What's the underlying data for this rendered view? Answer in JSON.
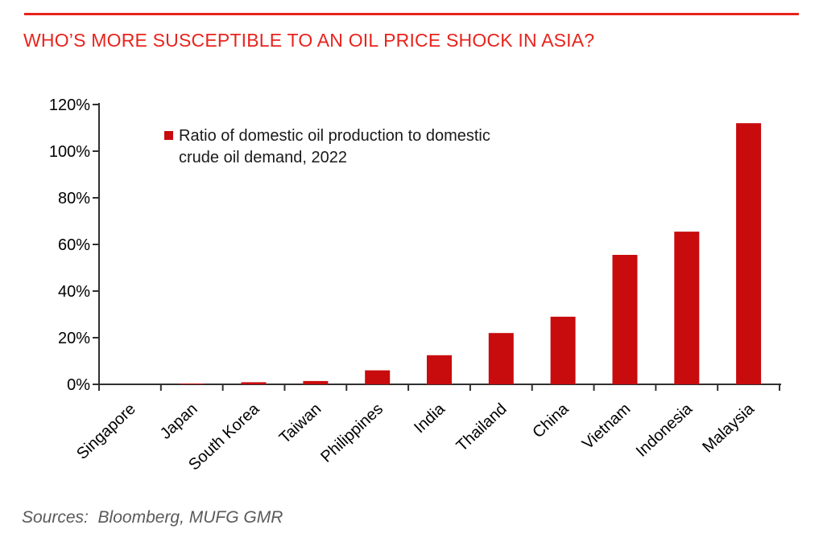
{
  "header": {
    "title": "WHO’S MORE SUSCEPTIBLE TO AN OIL PRICE SHOCK IN ASIA?"
  },
  "legend": {
    "line1": "Ratio of domestic oil production to domestic",
    "line2": "crude oil demand, 2022"
  },
  "footer": {
    "sources": "Sources:  Bloomberg, MUFG GMR"
  },
  "colors": {
    "accent_red": "#E8231D",
    "bar_red": "#C80B0D",
    "axis": "#303030",
    "tick_label": "#000000",
    "source_gray": "#5A5A5A"
  },
  "chart_data": {
    "type": "bar",
    "title": "WHO’S MORE SUSCEPTIBLE TO AN OIL PRICE SHOCK IN ASIA?",
    "categories": [
      "Singapore",
      "Japan",
      "South Korea",
      "Taiwan",
      "Philippines",
      "India",
      "Thailand",
      "China",
      "Vietnam",
      "Indonesia",
      "Malaysia"
    ],
    "values": [
      0,
      0.3,
      0.9,
      1.4,
      6,
      12.5,
      22,
      29,
      55.5,
      65.5,
      112
    ],
    "series_name": "Ratio of domestic oil production to domestic crude oil demand, 2022",
    "unit": "%",
    "xlabel": "",
    "ylabel": "",
    "ylim": [
      0,
      120
    ],
    "yticks": [
      0,
      20,
      40,
      60,
      80,
      100,
      120
    ],
    "ytick_suffix": "%",
    "bar_color": "#C80B0D",
    "grid": false,
    "legend_position": "top-left-inside"
  }
}
